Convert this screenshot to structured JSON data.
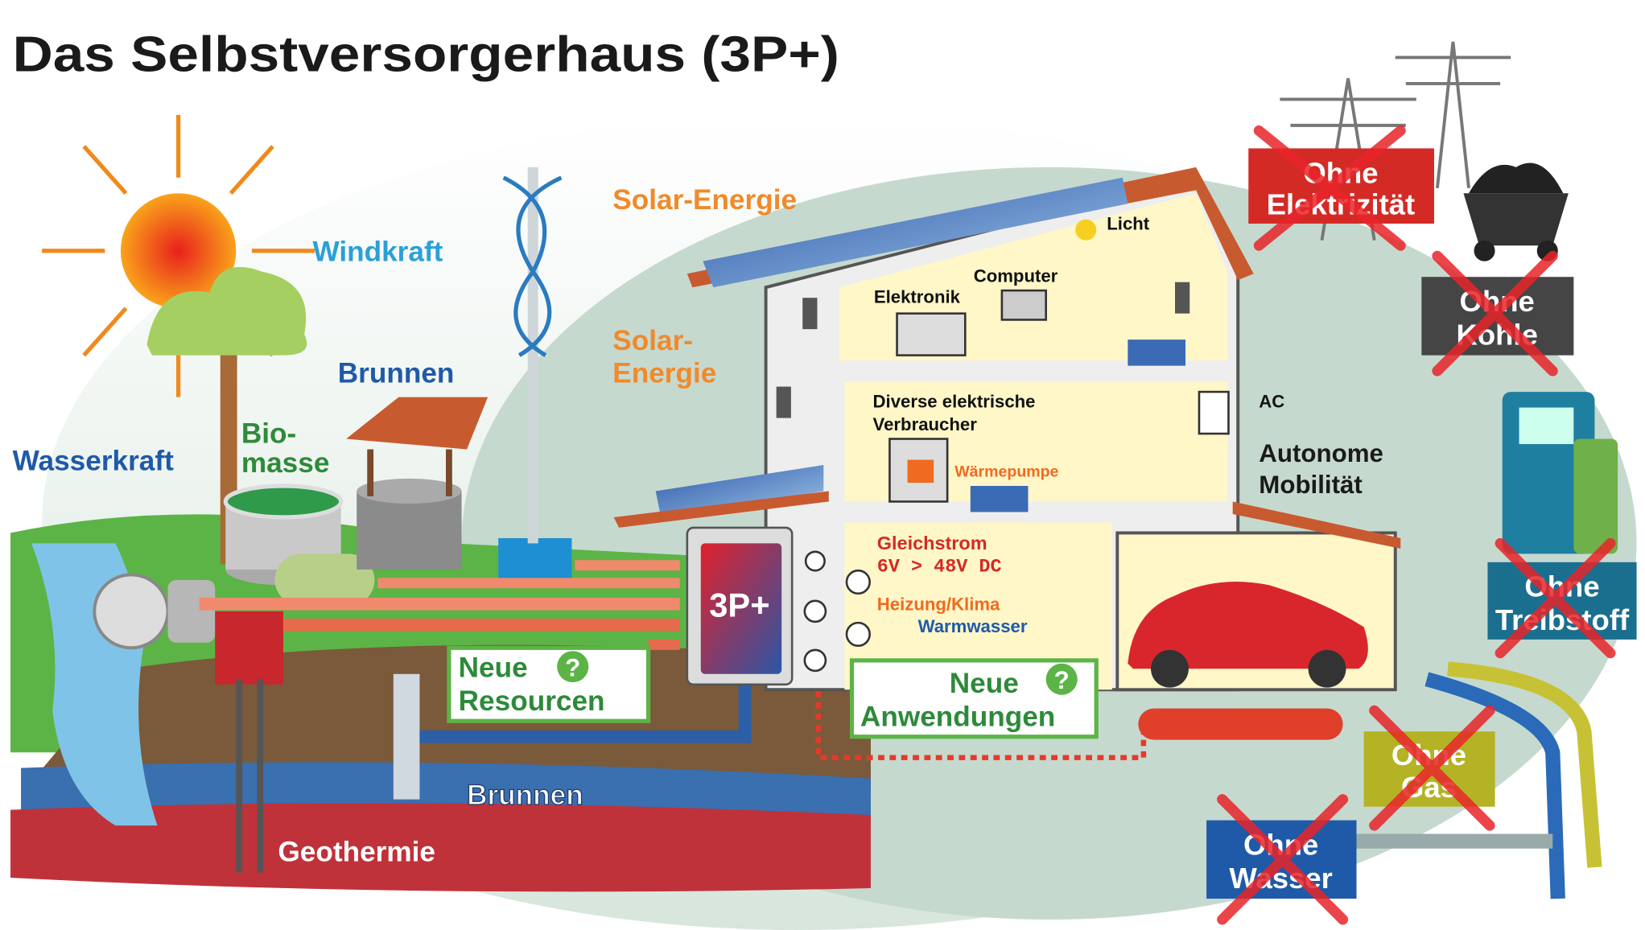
{
  "header": {
    "title": "Das Selbstversorgerhaus (3P+)"
  },
  "sources": {
    "wind": "Windkraft",
    "solar_roof": "Solar-Energie",
    "solar_dish": [
      "Solar-",
      "Energie"
    ],
    "well": "Brunnen",
    "biomass": [
      "Bio-",
      "masse"
    ],
    "hydro": "Wasserkraft",
    "well_ground": "Brunnen",
    "geothermal": "Geothermie"
  },
  "hub": {
    "label": "3P+",
    "unknown": "?",
    "new_resources": [
      "Neue",
      "Resourcen"
    ],
    "new_applications": [
      "Neue",
      "Anwendungen"
    ]
  },
  "house": {
    "light": "Licht",
    "computer": "Computer",
    "electronics": "Elektronik",
    "consumers": [
      "Diverse elektrische",
      "Verbraucher"
    ],
    "heat_pump": "Wärmepumpe",
    "ac": "AC",
    "mobility": [
      "Autonome",
      "Mobilität"
    ],
    "direct_current": [
      "Gleichstrom",
      "6V > 48V DC"
    ],
    "heating": "Heizung/Klima",
    "hot_water": "Warmwasser"
  },
  "without": [
    {
      "lines": [
        "Ohne",
        "Elektrizität"
      ]
    },
    {
      "lines": [
        "Ohne",
        "Kohle"
      ]
    },
    {
      "lines": [
        "Ohne",
        "Treibstoff"
      ]
    },
    {
      "lines": [
        "Ohne",
        "Gas"
      ]
    },
    {
      "lines": [
        "Ohne",
        "Wasser"
      ]
    }
  ]
}
